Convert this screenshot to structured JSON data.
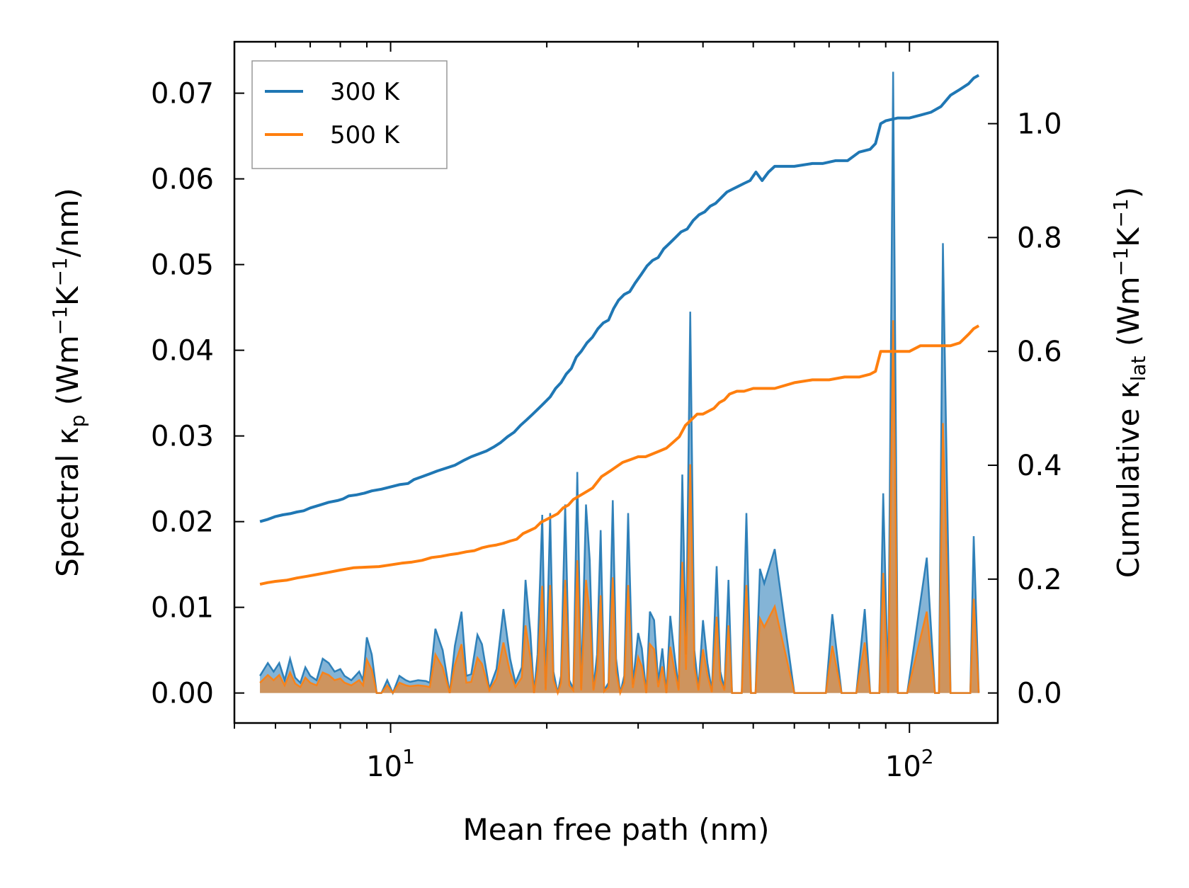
{
  "chart_data": {
    "type": "line",
    "xlabel": "Mean free path (nm)",
    "ylabel_left": {
      "main": "Spectral κ",
      "sub": "p",
      "unit_pre": " (Wm",
      "sup1": "−1",
      "mid": "K",
      "sup2": "−1",
      "unit_post": "/nm)"
    },
    "ylabel_right": {
      "main": "Cumulative κ",
      "sub": "lat",
      "unit_pre": " (Wm",
      "sup1": "−1",
      "mid": "K",
      "sup2": "−1",
      "unit_post": ")"
    },
    "xscale": "log",
    "xlim": [
      5.0,
      148.0
    ],
    "ylim_left": [
      -0.0035,
      0.076
    ],
    "ylim_right": [
      -0.0527,
      1.1438
    ],
    "x_ticks": [
      {
        "value": 10,
        "base": "10",
        "exp": "1"
      },
      {
        "value": 100,
        "base": "10",
        "exp": "2"
      }
    ],
    "y_left_ticks": [
      {
        "value": 0.0,
        "label": "0.00"
      },
      {
        "value": 0.01,
        "label": "0.01"
      },
      {
        "value": 0.02,
        "label": "0.02"
      },
      {
        "value": 0.03,
        "label": "0.03"
      },
      {
        "value": 0.04,
        "label": "0.04"
      },
      {
        "value": 0.05,
        "label": "0.05"
      },
      {
        "value": 0.06,
        "label": "0.06"
      },
      {
        "value": 0.07,
        "label": "0.07"
      }
    ],
    "y_right_ticks": [
      {
        "value": 0.0,
        "label": "0.0"
      },
      {
        "value": 0.2,
        "label": "0.2"
      },
      {
        "value": 0.4,
        "label": "0.4"
      },
      {
        "value": 0.6,
        "label": "0.6"
      },
      {
        "value": 0.8,
        "label": "0.8"
      },
      {
        "value": 1.0,
        "label": "1.0"
      }
    ],
    "legend": {
      "placement": "top-left"
    },
    "colors": {
      "s300": "#1f77b4",
      "s500": "#ff7f0e",
      "fill300": "#1f77b4",
      "fill500": "#ff7f0e"
    },
    "spectral_x": [
      5.6,
      5.8,
      5.95,
      6.1,
      6.25,
      6.4,
      6.55,
      6.7,
      6.85,
      7.0,
      7.2,
      7.4,
      7.6,
      7.8,
      8.0,
      8.15,
      8.4,
      8.7,
      8.85,
      9.0,
      9.2,
      9.4,
      9.6,
      9.85,
      10.1,
      10.4,
      10.7,
      10.9,
      11.3,
      11.7,
      11.9,
      12.2,
      12.6,
      13.0,
      13.3,
      13.7,
      14.0,
      14.3,
      14.7,
      15.0,
      15.5,
      16.0,
      16.5,
      17.0,
      17.4,
      17.9,
      18.2,
      18.6,
      18.9,
      19.2,
      19.6,
      19.9,
      20.3,
      20.6,
      21.0,
      21.3,
      21.7,
      22.1,
      22.5,
      22.9,
      23.3,
      23.8,
      24.2,
      24.6,
      25.0,
      25.4,
      25.8,
      26.3,
      26.8,
      27.2,
      27.7,
      28.2,
      28.7,
      29.3,
      30.0,
      30.5,
      31.1,
      31.6,
      32.2,
      32.8,
      33.4,
      34.0,
      34.6,
      35.2,
      35.9,
      36.5,
      37.1,
      37.8,
      38.5,
      39.2,
      40.0,
      40.8,
      41.6,
      42.5,
      43.2,
      44.0,
      44.8,
      45.5,
      46.0,
      47.5,
      48.5,
      49.5,
      50.5,
      51.5,
      52.5,
      55.0,
      60.0,
      64.0,
      67.0,
      69.0,
      71.0,
      74.0,
      76.0,
      79.0,
      82.0,
      84.0,
      86.0,
      87.5,
      89.0,
      91.0,
      93.0,
      95.0,
      97.0,
      99.0,
      108.0,
      112.0,
      114.0,
      116.0,
      120.0,
      125.0,
      128.0,
      131.0,
      133.0,
      136.0
    ],
    "series": [
      {
        "name": "300 K",
        "spectral": [
          0.002,
          0.0035,
          0.0025,
          0.0035,
          0.0015,
          0.004,
          0.0018,
          0.0012,
          0.003,
          0.002,
          0.0015,
          0.004,
          0.0035,
          0.0025,
          0.0028,
          0.002,
          0.0015,
          0.0025,
          0.0015,
          0.0065,
          0.0045,
          0.0,
          0.0,
          0.0015,
          0.0,
          0.002,
          0.0015,
          0.0013,
          0.0015,
          0.0014,
          0.0012,
          0.0075,
          0.005,
          0.0,
          0.0055,
          0.0095,
          0.002,
          0.0022,
          0.0068,
          0.0057,
          0.0005,
          0.0028,
          0.0098,
          0.004,
          0.0012,
          0.003,
          0.0132,
          0.007,
          0.0,
          0.0045,
          0.0208,
          0.0005,
          0.021,
          0.0025,
          0.0,
          0.002,
          0.022,
          0.0015,
          0.0005,
          0.0258,
          0.0005,
          0.022,
          0.0155,
          0.0005,
          0.0045,
          0.019,
          0.0003,
          0.0012,
          0.0225,
          0.004,
          0.0,
          0.002,
          0.021,
          0.001,
          0.007,
          0.0052,
          0.0,
          0.0095,
          0.0085,
          0.0012,
          0.0052,
          0.0,
          0.009,
          0.0048,
          0.0005,
          0.0255,
          0.0045,
          0.0445,
          0.005,
          0.0005,
          0.0085,
          0.0035,
          0.0002,
          0.0148,
          0.0025,
          0.0005,
          0.0132,
          0.0,
          0.0,
          0.0,
          0.021,
          0.0,
          0.0,
          0.0145,
          0.0128,
          0.0168,
          0.0,
          0.0,
          0.0,
          0.0,
          0.0092,
          0.0,
          0.0,
          0.0,
          0.0098,
          0.0,
          0.0,
          0.0,
          0.0233,
          0.0,
          0.0725,
          0.0,
          0.0,
          0.0,
          0.0158,
          0.0,
          0.0,
          0.0525,
          0.0,
          0.0,
          0.0,
          0.0,
          0.0183,
          0.0
        ],
        "cumulative_x": [
          5.6,
          5.8,
          6.0,
          6.2,
          6.4,
          6.6,
          6.8,
          7.0,
          7.3,
          7.6,
          7.9,
          8.1,
          8.3,
          8.6,
          8.9,
          9.2,
          9.6,
          10.0,
          10.4,
          10.8,
          11.1,
          11.5,
          11.9,
          12.3,
          12.8,
          13.3,
          13.8,
          14.3,
          14.8,
          15.3,
          15.8,
          16.3,
          16.8,
          17.3,
          17.8,
          18.3,
          18.8,
          19.3,
          19.8,
          20.3,
          20.8,
          21.3,
          21.8,
          22.3,
          22.8,
          23.3,
          23.9,
          24.5,
          25.1,
          25.7,
          26.3,
          26.9,
          27.5,
          28.2,
          28.9,
          29.6,
          30.4,
          31.2,
          32.0,
          32.8,
          33.6,
          34.5,
          35.4,
          36.3,
          37.3,
          38.3,
          39.3,
          40.3,
          41.3,
          42.3,
          43.4,
          44.5,
          45.6,
          46.8,
          48.0,
          49.3,
          50.6,
          52.0,
          53.5,
          55.0,
          60.0,
          65.0,
          68.0,
          72.0,
          76.0,
          80.0,
          84.0,
          86.0,
          88.0,
          90.0,
          95.0,
          100.0,
          105.0,
          110.0,
          115.0,
          120.0,
          125.0,
          130.0,
          133.0,
          136.0
        ],
        "cumulative": [
          0.301,
          0.305,
          0.31,
          0.313,
          0.315,
          0.318,
          0.32,
          0.325,
          0.33,
          0.335,
          0.338,
          0.341,
          0.346,
          0.348,
          0.351,
          0.355,
          0.358,
          0.362,
          0.366,
          0.368,
          0.375,
          0.38,
          0.385,
          0.39,
          0.395,
          0.4,
          0.408,
          0.415,
          0.42,
          0.425,
          0.432,
          0.44,
          0.45,
          0.458,
          0.47,
          0.48,
          0.49,
          0.5,
          0.51,
          0.52,
          0.535,
          0.545,
          0.56,
          0.57,
          0.59,
          0.6,
          0.615,
          0.625,
          0.64,
          0.65,
          0.655,
          0.675,
          0.69,
          0.7,
          0.705,
          0.72,
          0.735,
          0.75,
          0.76,
          0.765,
          0.78,
          0.79,
          0.8,
          0.81,
          0.815,
          0.83,
          0.84,
          0.845,
          0.855,
          0.86,
          0.87,
          0.88,
          0.885,
          0.89,
          0.895,
          0.9,
          0.915,
          0.9,
          0.915,
          0.925,
          0.925,
          0.93,
          0.93,
          0.935,
          0.935,
          0.95,
          0.955,
          0.965,
          1.0,
          1.005,
          1.01,
          1.01,
          1.015,
          1.02,
          1.03,
          1.05,
          1.06,
          1.07,
          1.08,
          1.085
        ]
      },
      {
        "name": "500 K",
        "spectral": [
          0.0012,
          0.0021,
          0.0015,
          0.0021,
          0.0009,
          0.0024,
          0.0011,
          0.0007,
          0.0018,
          0.0012,
          0.0009,
          0.0024,
          0.0021,
          0.0015,
          0.0017,
          0.0012,
          0.0009,
          0.0015,
          0.0009,
          0.0039,
          0.0027,
          0.0,
          0.0,
          0.0009,
          0.0,
          0.0012,
          0.0009,
          0.0008,
          0.0009,
          0.0008,
          0.0007,
          0.0045,
          0.003,
          0.0,
          0.0033,
          0.0057,
          0.0012,
          0.0013,
          0.0041,
          0.0034,
          0.0003,
          0.0017,
          0.0059,
          0.0024,
          0.0007,
          0.0018,
          0.0079,
          0.0042,
          0.0,
          0.0027,
          0.0125,
          0.0003,
          0.0126,
          0.0015,
          0.0,
          0.0012,
          0.0132,
          0.0009,
          0.0003,
          0.0155,
          0.0003,
          0.0132,
          0.0093,
          0.0003,
          0.0027,
          0.0114,
          0.0002,
          0.0007,
          0.0135,
          0.0024,
          0.0,
          0.0012,
          0.0126,
          0.0006,
          0.0042,
          0.0031,
          0.0,
          0.0057,
          0.0051,
          0.0007,
          0.0031,
          0.0,
          0.0054,
          0.0029,
          0.0003,
          0.0153,
          0.0027,
          0.0267,
          0.003,
          0.0003,
          0.0051,
          0.0021,
          0.0001,
          0.0089,
          0.0015,
          0.0003,
          0.0079,
          0.0,
          0.0,
          0.0,
          0.0126,
          0.0,
          0.0,
          0.0087,
          0.0077,
          0.0101,
          0.0,
          0.0,
          0.0,
          0.0,
          0.0055,
          0.0,
          0.0,
          0.0,
          0.0059,
          0.0,
          0.0,
          0.0,
          0.014,
          0.0,
          0.0435,
          0.0,
          0.0,
          0.0,
          0.0095,
          0.0,
          0.0,
          0.0315,
          0.0,
          0.0,
          0.0,
          0.0,
          0.011,
          0.0
        ],
        "cumulative_x": [
          5.6,
          5.8,
          6.0,
          6.3,
          6.6,
          6.9,
          7.2,
          7.6,
          8.0,
          8.5,
          9.0,
          9.5,
          10.0,
          10.5,
          11.0,
          11.5,
          12.0,
          12.5,
          13.0,
          13.5,
          14.0,
          14.5,
          15.0,
          15.5,
          16.0,
          16.5,
          17.0,
          17.5,
          18.0,
          18.5,
          19.0,
          19.5,
          20.0,
          20.5,
          21.0,
          21.5,
          22.0,
          22.5,
          23.0,
          23.5,
          24.0,
          24.5,
          25.0,
          25.5,
          26.0,
          26.5,
          27.0,
          28.0,
          29.0,
          30.0,
          31.0,
          32.0,
          33.0,
          34.0,
          35.0,
          36.0,
          37.0,
          38.0,
          39.0,
          40.0,
          41.0,
          42.0,
          43.0,
          44.0,
          45.0,
          46.5,
          48.0,
          50.0,
          52.0,
          55.0,
          60.0,
          65.0,
          70.0,
          75.0,
          80.0,
          84.0,
          86.0,
          88.0,
          90.0,
          95.0,
          100.0,
          105.0,
          110.0,
          115.0,
          120.0,
          125.0,
          130.0,
          133.0,
          136.0
        ],
        "cumulative": [
          0.191,
          0.194,
          0.196,
          0.198,
          0.202,
          0.205,
          0.208,
          0.212,
          0.216,
          0.22,
          0.221,
          0.222,
          0.225,
          0.228,
          0.23,
          0.233,
          0.238,
          0.24,
          0.243,
          0.245,
          0.248,
          0.25,
          0.255,
          0.258,
          0.26,
          0.263,
          0.267,
          0.27,
          0.28,
          0.285,
          0.29,
          0.3,
          0.305,
          0.31,
          0.315,
          0.325,
          0.33,
          0.34,
          0.345,
          0.35,
          0.355,
          0.36,
          0.37,
          0.38,
          0.385,
          0.39,
          0.395,
          0.405,
          0.41,
          0.415,
          0.415,
          0.42,
          0.425,
          0.43,
          0.44,
          0.45,
          0.47,
          0.48,
          0.49,
          0.49,
          0.495,
          0.5,
          0.51,
          0.515,
          0.525,
          0.53,
          0.53,
          0.535,
          0.535,
          0.535,
          0.545,
          0.55,
          0.55,
          0.555,
          0.555,
          0.56,
          0.565,
          0.6,
          0.6,
          0.6,
          0.6,
          0.61,
          0.61,
          0.61,
          0.61,
          0.615,
          0.63,
          0.64,
          0.645
        ]
      }
    ]
  }
}
